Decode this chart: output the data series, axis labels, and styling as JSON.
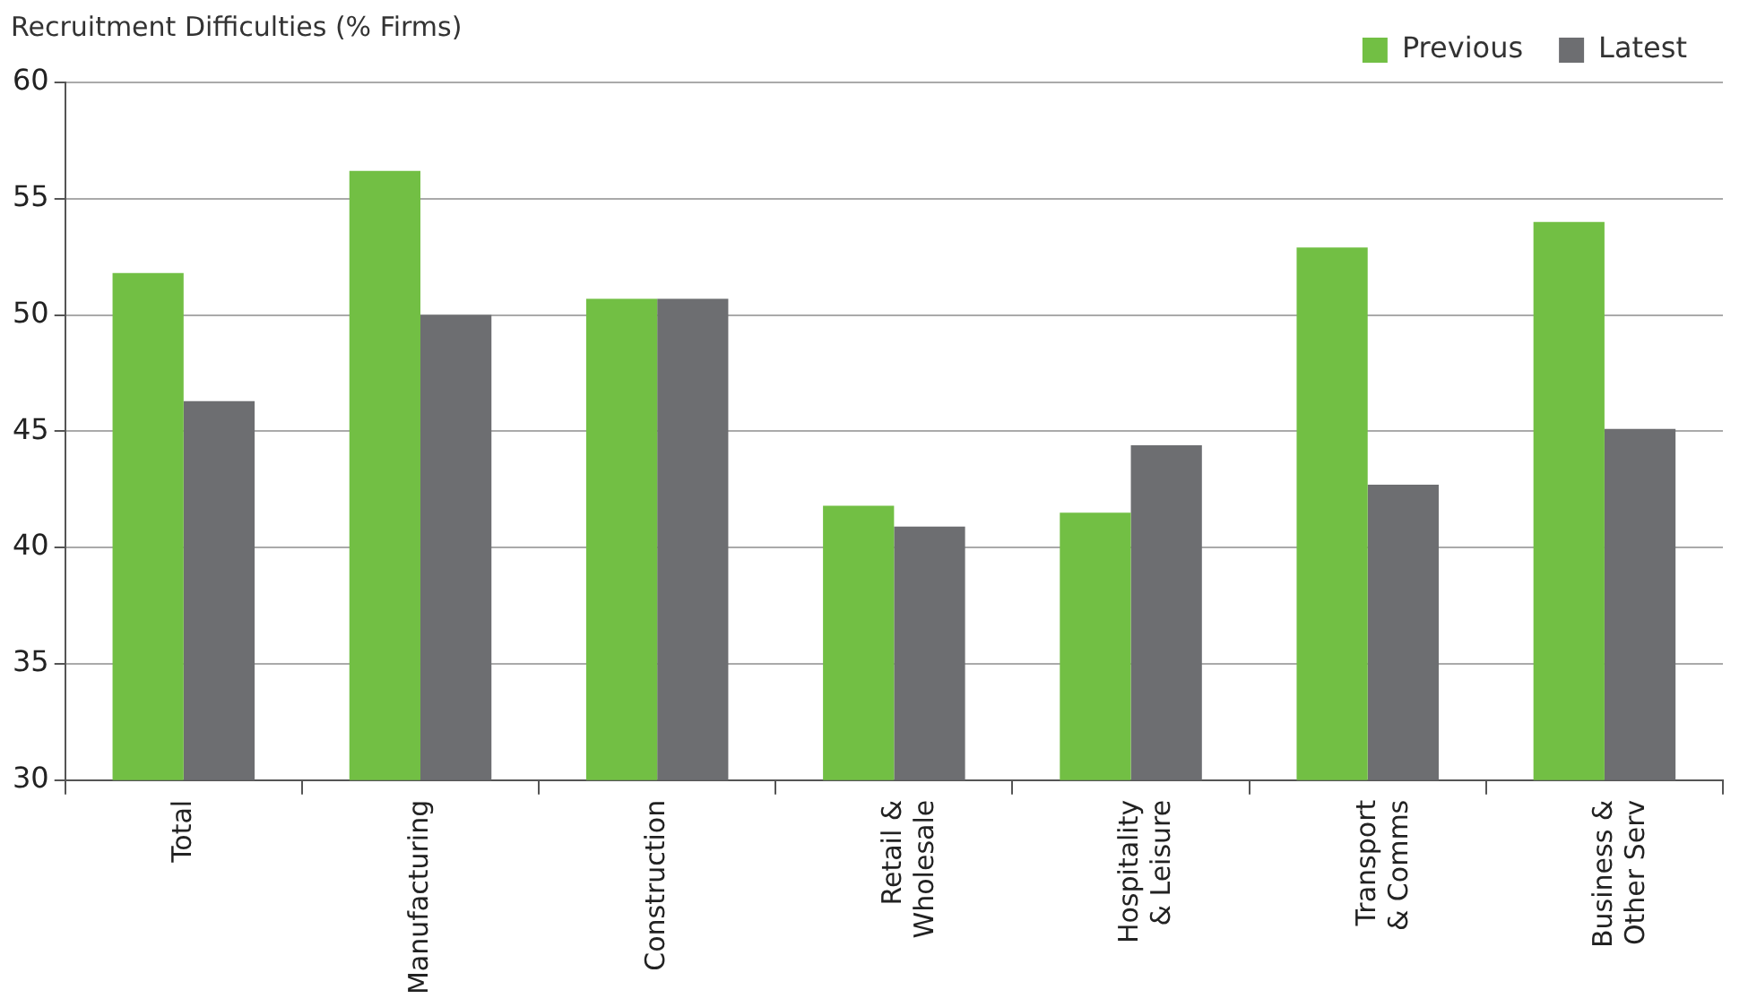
{
  "chart_data": {
    "type": "bar",
    "ylabel": "Recruitment Difficulties (% Firms)",
    "categories": [
      "Total",
      "Manufacturing",
      "Construction",
      "Retail & Wholesale",
      "Hospitality & Leisure",
      "Transport & Comms",
      "Business & Other Serv"
    ],
    "series": [
      {
        "name": "Previous",
        "color": "#72bf44",
        "values": [
          51.8,
          56.2,
          50.7,
          41.8,
          41.5,
          52.9,
          54.0
        ]
      },
      {
        "name": "Latest",
        "color": "#6d6e71",
        "values": [
          46.3,
          50.0,
          50.7,
          40.9,
          44.4,
          42.7,
          45.1
        ]
      }
    ],
    "ylim": [
      30,
      60
    ],
    "yticks": [
      30,
      35,
      40,
      45,
      50,
      55,
      60
    ],
    "grid": "y",
    "legend": "top right"
  }
}
